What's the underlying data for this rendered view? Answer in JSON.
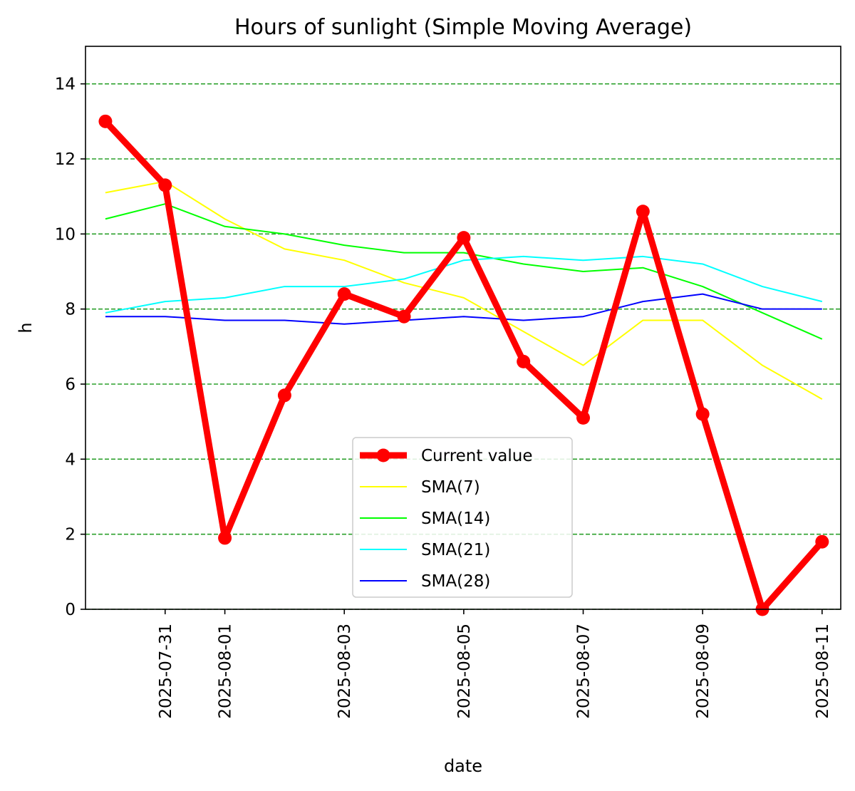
{
  "chart_data": {
    "type": "line",
    "title": "Hours of sunlight (Simple Moving Average)",
    "xlabel": "date",
    "ylabel": "h",
    "ylim": [
      0,
      15
    ],
    "xlim": [
      "2025-07-29T16:00",
      "2025-08-11T07:30"
    ],
    "x": [
      "2025-07-30",
      "2025-07-31",
      "2025-08-01",
      "2025-08-02",
      "2025-08-03",
      "2025-08-04",
      "2025-08-05",
      "2025-08-06",
      "2025-08-07",
      "2025-08-08",
      "2025-08-09",
      "2025-08-10",
      "2025-08-11"
    ],
    "x_ticks": [
      "2025-07-31",
      "2025-08-01",
      "2025-08-03",
      "2025-08-05",
      "2025-08-07",
      "2025-08-09",
      "2025-08-11"
    ],
    "y_ticks": [
      0,
      2,
      4,
      6,
      8,
      10,
      12,
      14
    ],
    "grid": {
      "axis": "y",
      "style": "dashed",
      "color": "#2ca02c"
    },
    "legend_position": "lower center",
    "series": [
      {
        "name": "Current value",
        "color": "#ff0000",
        "markers": true,
        "values": [
          13.0,
          11.3,
          1.9,
          5.7,
          8.4,
          7.8,
          9.9,
          6.6,
          5.1,
          10.6,
          5.2,
          0.0,
          1.8
        ]
      },
      {
        "name": "SMA(7)",
        "color": "#ffff00",
        "markers": false,
        "values": [
          11.1,
          11.4,
          10.4,
          9.6,
          9.3,
          8.7,
          8.3,
          7.4,
          6.5,
          7.7,
          7.7,
          6.5,
          5.6
        ]
      },
      {
        "name": "SMA(14)",
        "color": "#00ff00",
        "markers": false,
        "values": [
          10.4,
          10.8,
          10.2,
          10.0,
          9.7,
          9.5,
          9.5,
          9.2,
          9.0,
          9.1,
          8.6,
          7.9,
          7.2
        ]
      },
      {
        "name": "SMA(21)",
        "color": "#00ffff",
        "markers": false,
        "values": [
          7.9,
          8.2,
          8.3,
          8.6,
          8.6,
          8.8,
          9.3,
          9.4,
          9.3,
          9.4,
          9.2,
          8.6,
          8.2
        ]
      },
      {
        "name": "SMA(28)",
        "color": "#0000ff",
        "markers": false,
        "values": [
          7.8,
          7.8,
          7.7,
          7.7,
          7.6,
          7.7,
          7.8,
          7.7,
          7.8,
          8.2,
          8.4,
          8.0,
          8.0
        ]
      }
    ]
  }
}
